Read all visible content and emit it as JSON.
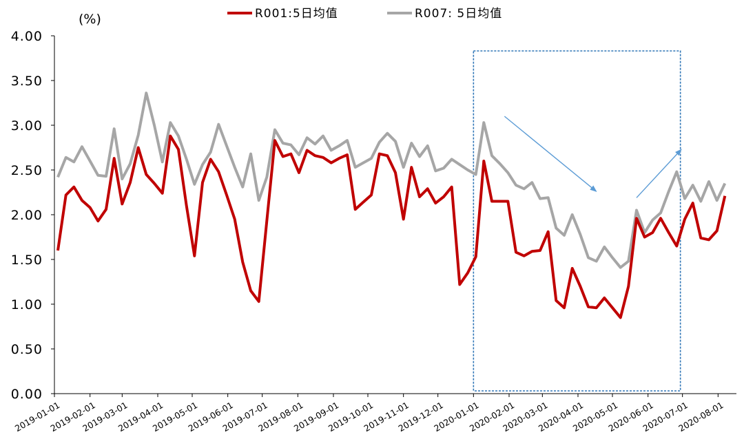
{
  "chart_data": {
    "type": "line",
    "unit_label": "(%)",
    "ylim": [
      0,
      4
    ],
    "yticks": [
      "0.00",
      "0.50",
      "1.00",
      "1.50",
      "2.00",
      "2.50",
      "3.00",
      "3.50",
      "4.00"
    ],
    "xlim": [
      "2019-01-01",
      "2020-08-17"
    ],
    "xticks": [
      "2019-01-01",
      "2019-02-01",
      "2019-03-01",
      "2019-04-01",
      "2019-05-01",
      "2019-06-01",
      "2019-07-01",
      "2019-08-01",
      "2019-09-01",
      "2019-10-01",
      "2019-11-01",
      "2019-12-01",
      "2020-01-01",
      "2020-02-01",
      "2020-03-01",
      "2020-04-01",
      "2020-05-01",
      "2020-06-01",
      "2020-07-01",
      "2020-08-01"
    ],
    "grid": false,
    "legend_position": "top",
    "highlight_box": [
      "2020-01-01",
      "2020-07-01"
    ],
    "arrows": [
      {
        "from": [
          "2020-01-28",
          3.1
        ],
        "to": [
          "2020-04-17",
          2.26
        ]
      },
      {
        "from": [
          "2020-05-22",
          2.19
        ],
        "to": [
          "2020-06-30",
          2.73
        ]
      }
    ],
    "series": [
      {
        "name": "R001:5日均值",
        "color": "#c00000",
        "points": [
          [
            "2019-01-04",
            1.6
          ],
          [
            "2019-01-11",
            2.22
          ],
          [
            "2019-01-18",
            2.31
          ],
          [
            "2019-01-25",
            2.16
          ],
          [
            "2019-02-01",
            2.08
          ],
          [
            "2019-02-08",
            1.93
          ],
          [
            "2019-02-15",
            2.06
          ],
          [
            "2019-02-22",
            2.63
          ],
          [
            "2019-03-01",
            2.12
          ],
          [
            "2019-03-08",
            2.36
          ],
          [
            "2019-03-15",
            2.75
          ],
          [
            "2019-03-22",
            2.45
          ],
          [
            "2019-03-29",
            2.35
          ],
          [
            "2019-04-05",
            2.24
          ],
          [
            "2019-04-12",
            2.88
          ],
          [
            "2019-04-19",
            2.73
          ],
          [
            "2019-04-26",
            2.1
          ],
          [
            "2019-05-03",
            1.54
          ],
          [
            "2019-05-10",
            2.36
          ],
          [
            "2019-05-17",
            2.62
          ],
          [
            "2019-05-24",
            2.48
          ],
          [
            "2019-05-31",
            2.22
          ],
          [
            "2019-06-07",
            1.95
          ],
          [
            "2019-06-14",
            1.47
          ],
          [
            "2019-06-21",
            1.15
          ],
          [
            "2019-06-28",
            1.03
          ],
          [
            "2019-07-05",
            1.93
          ],
          [
            "2019-07-12",
            2.83
          ],
          [
            "2019-07-19",
            2.65
          ],
          [
            "2019-07-26",
            2.68
          ],
          [
            "2019-08-02",
            2.47
          ],
          [
            "2019-08-09",
            2.72
          ],
          [
            "2019-08-16",
            2.66
          ],
          [
            "2019-08-23",
            2.64
          ],
          [
            "2019-08-30",
            2.58
          ],
          [
            "2019-09-06",
            2.63
          ],
          [
            "2019-09-13",
            2.67
          ],
          [
            "2019-09-20",
            2.06
          ],
          [
            "2019-09-27",
            2.14
          ],
          [
            "2019-10-04",
            2.22
          ],
          [
            "2019-10-11",
            2.68
          ],
          [
            "2019-10-18",
            2.66
          ],
          [
            "2019-10-25",
            2.47
          ],
          [
            "2019-11-01",
            1.95
          ],
          [
            "2019-11-08",
            2.53
          ],
          [
            "2019-11-15",
            2.2
          ],
          [
            "2019-11-22",
            2.29
          ],
          [
            "2019-11-29",
            2.13
          ],
          [
            "2019-12-06",
            2.2
          ],
          [
            "2019-12-13",
            2.31
          ],
          [
            "2019-12-20",
            1.22
          ],
          [
            "2019-12-27",
            1.35
          ],
          [
            "2020-01-03",
            1.53
          ],
          [
            "2020-01-10",
            2.6
          ],
          [
            "2020-01-17",
            2.15
          ],
          [
            "2020-01-24",
            2.15
          ],
          [
            "2020-01-31",
            2.15
          ],
          [
            "2020-02-07",
            1.58
          ],
          [
            "2020-02-14",
            1.54
          ],
          [
            "2020-02-21",
            1.59
          ],
          [
            "2020-02-28",
            1.6
          ],
          [
            "2020-03-06",
            1.81
          ],
          [
            "2020-03-13",
            1.04
          ],
          [
            "2020-03-20",
            0.96
          ],
          [
            "2020-03-27",
            1.4
          ],
          [
            "2020-04-03",
            1.2
          ],
          [
            "2020-04-10",
            0.97
          ],
          [
            "2020-04-17",
            0.96
          ],
          [
            "2020-04-24",
            1.07
          ],
          [
            "2020-05-01",
            0.96
          ],
          [
            "2020-05-08",
            0.85
          ],
          [
            "2020-05-15",
            1.2
          ],
          [
            "2020-05-22",
            1.96
          ],
          [
            "2020-05-29",
            1.75
          ],
          [
            "2020-06-05",
            1.8
          ],
          [
            "2020-06-12",
            1.96
          ],
          [
            "2020-06-19",
            1.8
          ],
          [
            "2020-06-26",
            1.65
          ],
          [
            "2020-07-03",
            1.95
          ],
          [
            "2020-07-10",
            2.13
          ],
          [
            "2020-07-17",
            1.74
          ],
          [
            "2020-07-24",
            1.72
          ],
          [
            "2020-07-31",
            1.82
          ],
          [
            "2020-08-07",
            2.21
          ]
        ]
      },
      {
        "name": "R007: 5日均值",
        "color": "#a6a6a6",
        "points": [
          [
            "2019-01-04",
            2.42
          ],
          [
            "2019-01-11",
            2.64
          ],
          [
            "2019-01-18",
            2.59
          ],
          [
            "2019-01-25",
            2.76
          ],
          [
            "2019-02-01",
            2.6
          ],
          [
            "2019-02-08",
            2.44
          ],
          [
            "2019-02-15",
            2.43
          ],
          [
            "2019-02-22",
            2.96
          ],
          [
            "2019-03-01",
            2.4
          ],
          [
            "2019-03-08",
            2.57
          ],
          [
            "2019-03-15",
            2.89
          ],
          [
            "2019-03-22",
            3.36
          ],
          [
            "2019-03-29",
            3.0
          ],
          [
            "2019-04-05",
            2.59
          ],
          [
            "2019-04-12",
            3.03
          ],
          [
            "2019-04-19",
            2.88
          ],
          [
            "2019-04-26",
            2.62
          ],
          [
            "2019-05-03",
            2.34
          ],
          [
            "2019-05-10",
            2.56
          ],
          [
            "2019-05-17",
            2.7
          ],
          [
            "2019-05-24",
            3.01
          ],
          [
            "2019-05-31",
            2.77
          ],
          [
            "2019-06-07",
            2.53
          ],
          [
            "2019-06-14",
            2.31
          ],
          [
            "2019-06-21",
            2.68
          ],
          [
            "2019-06-28",
            2.16
          ],
          [
            "2019-07-05",
            2.42
          ],
          [
            "2019-07-12",
            2.95
          ],
          [
            "2019-07-19",
            2.8
          ],
          [
            "2019-07-26",
            2.78
          ],
          [
            "2019-08-02",
            2.67
          ],
          [
            "2019-08-09",
            2.86
          ],
          [
            "2019-08-16",
            2.79
          ],
          [
            "2019-08-23",
            2.88
          ],
          [
            "2019-08-30",
            2.72
          ],
          [
            "2019-09-06",
            2.77
          ],
          [
            "2019-09-13",
            2.83
          ],
          [
            "2019-09-20",
            2.53
          ],
          [
            "2019-09-27",
            2.58
          ],
          [
            "2019-10-04",
            2.63
          ],
          [
            "2019-10-11",
            2.81
          ],
          [
            "2019-10-18",
            2.91
          ],
          [
            "2019-10-25",
            2.82
          ],
          [
            "2019-11-01",
            2.53
          ],
          [
            "2019-11-08",
            2.8
          ],
          [
            "2019-11-15",
            2.65
          ],
          [
            "2019-11-22",
            2.77
          ],
          [
            "2019-11-29",
            2.49
          ],
          [
            "2019-12-06",
            2.52
          ],
          [
            "2019-12-13",
            2.62
          ],
          [
            "2019-12-20",
            2.56
          ],
          [
            "2019-12-27",
            2.5
          ],
          [
            "2020-01-03",
            2.45
          ],
          [
            "2020-01-10",
            3.03
          ],
          [
            "2020-01-17",
            2.66
          ],
          [
            "2020-01-24",
            2.57
          ],
          [
            "2020-01-31",
            2.47
          ],
          [
            "2020-02-07",
            2.33
          ],
          [
            "2020-02-14",
            2.29
          ],
          [
            "2020-02-21",
            2.36
          ],
          [
            "2020-02-28",
            2.18
          ],
          [
            "2020-03-06",
            2.19
          ],
          [
            "2020-03-13",
            1.85
          ],
          [
            "2020-03-20",
            1.77
          ],
          [
            "2020-03-27",
            2.0
          ],
          [
            "2020-04-03",
            1.78
          ],
          [
            "2020-04-10",
            1.52
          ],
          [
            "2020-04-17",
            1.48
          ],
          [
            "2020-04-24",
            1.64
          ],
          [
            "2020-05-01",
            1.52
          ],
          [
            "2020-05-08",
            1.41
          ],
          [
            "2020-05-15",
            1.48
          ],
          [
            "2020-05-22",
            2.05
          ],
          [
            "2020-05-29",
            1.8
          ],
          [
            "2020-06-05",
            1.94
          ],
          [
            "2020-06-12",
            2.02
          ],
          [
            "2020-06-19",
            2.26
          ],
          [
            "2020-06-26",
            2.48
          ],
          [
            "2020-07-03",
            2.18
          ],
          [
            "2020-07-10",
            2.33
          ],
          [
            "2020-07-17",
            2.15
          ],
          [
            "2020-07-24",
            2.37
          ],
          [
            "2020-07-31",
            2.16
          ],
          [
            "2020-08-07",
            2.35
          ]
        ]
      }
    ]
  }
}
